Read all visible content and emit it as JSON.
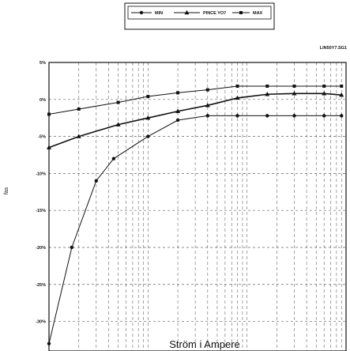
{
  "chart_data": {
    "type": "line",
    "file_id": "LIN50Y7.SG1",
    "ylabel": "fas",
    "xlabel": "Ström i Ampere",
    "y_ticks": [
      "5%",
      "0%",
      "-5%",
      "-10%",
      "-15%",
      "-20%",
      "-25%",
      "-30%"
    ],
    "y_tick_values": [
      5,
      0,
      -5,
      -10,
      -15,
      -20,
      -25,
      -30
    ],
    "ylim": [
      -34,
      5
    ],
    "x_scale": "log",
    "xlim": [
      1,
      1000
    ],
    "grid": true,
    "legend_position": "top-center",
    "series": [
      {
        "name": "MIN",
        "marker": "circle",
        "x": [
          1,
          1.7,
          3,
          4.5,
          10,
          20,
          40,
          80,
          160,
          300,
          600,
          900
        ],
        "values": [
          -33,
          -20,
          -11,
          -8,
          -5,
          -2.8,
          -2.2,
          -2.2,
          -2.2,
          -2.2,
          -2.2,
          -2.2
        ]
      },
      {
        "name": "PINCE YO7",
        "marker": "triangle",
        "x": [
          1,
          2,
          5,
          10,
          20,
          40,
          80,
          160,
          300,
          600,
          900
        ],
        "values": [
          -6.5,
          -5,
          -3.4,
          -2.5,
          -1.6,
          -0.8,
          0.2,
          0.7,
          0.8,
          0.8,
          0.6
        ]
      },
      {
        "name": "MAX",
        "marker": "square",
        "x": [
          1,
          2,
          5,
          10,
          20,
          40,
          80,
          160,
          300,
          600,
          900
        ],
        "values": [
          -2,
          -1.3,
          -0.4,
          0.4,
          0.9,
          1.3,
          1.8,
          1.8,
          1.8,
          1.8,
          1.8
        ]
      }
    ]
  }
}
